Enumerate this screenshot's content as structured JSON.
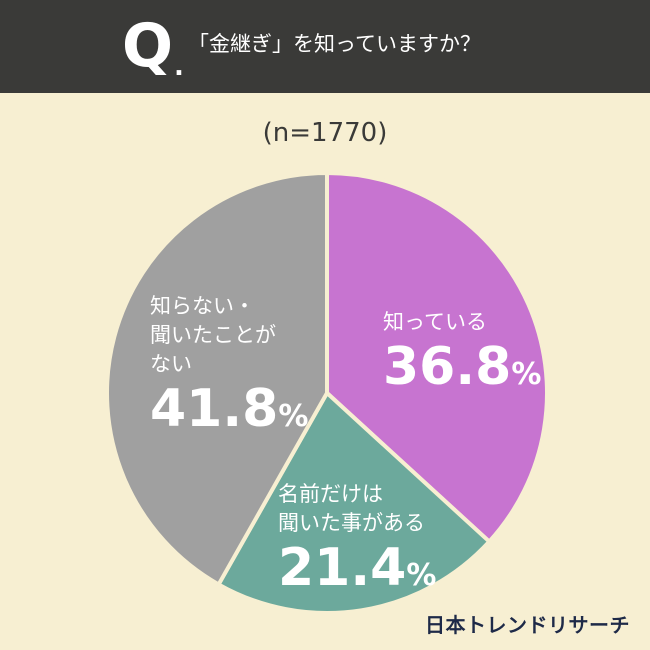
{
  "header": {
    "q_letter": "Q",
    "q_dot": ".",
    "question": "「金継ぎ」を知っていますか？"
  },
  "sample_size": "(n=1770)",
  "chart_data": {
    "type": "pie",
    "title": "「金継ぎ」を知っていますか？",
    "subtitle": "(n=1770)",
    "slices": [
      {
        "label": "知っている",
        "value": 36.8,
        "color": "#c774d0"
      },
      {
        "label": "名前だけは\n聞いた事がある",
        "value": 21.4,
        "color": "#6ca99c"
      },
      {
        "label": "知らない・\n聞いたことが\nない",
        "value": 41.8,
        "color": "#a0a0a0"
      }
    ],
    "unit": "%",
    "stroke_color": "#f7efd2"
  },
  "logo": "日本トレンドリサーチ"
}
